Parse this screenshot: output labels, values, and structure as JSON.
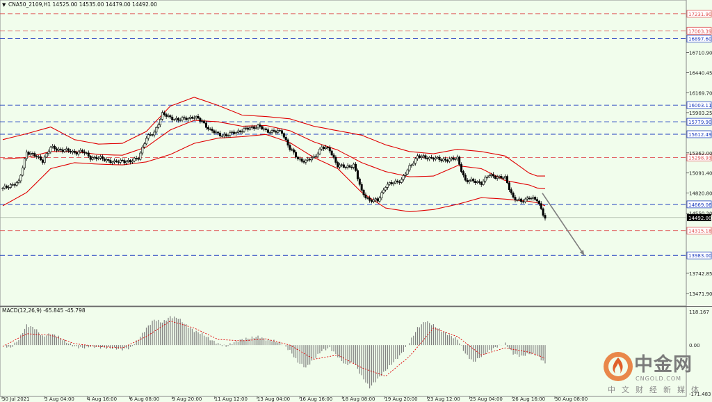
{
  "header": {
    "text": "CNA50_2109,H1  14525.00 14535.00 14479.00 14492.00",
    "macd_label": "MACD(12,26,9) -65.845 -45.798"
  },
  "colors": {
    "background": "#f1fdec",
    "bollinger": "#e00000",
    "candles": "#000000",
    "resistance_dash": "#e05050",
    "support_dash": "#2040c0",
    "arrow": "#808080",
    "macd_hist": "#808080",
    "macd_signal": "#e00000"
  },
  "watermark": {
    "icon": "cngold-flame-logo",
    "cn": "中金网",
    "en": "CNGOLD.COM",
    "sub": "中文财经新媒体"
  },
  "chart_data": [
    {
      "type": "candlestick",
      "title": "CNA50_2109,H1",
      "ohlc_last": {
        "open": 14525.0,
        "high": 14535.0,
        "low": 14479.0,
        "close": 14492.0
      },
      "y_ticks": [
        "16710.90",
        "16440.45",
        "16169.70",
        "15903.25",
        "15362.00",
        "15091.40",
        "14820.80",
        "14550.20",
        "13742.85",
        "13471.90"
      ],
      "ylim": [
        13340,
        17380
      ],
      "x_ticks": [
        "30 Jul 2021",
        "3 Aug 04:00",
        "4 Aug 16:00",
        "6 Aug 08:00",
        "9 Aug 20:00",
        "11 Aug 12:00",
        "13 Aug 04:00",
        "16 Aug 16:00",
        "18 Aug 08:00",
        "19 Aug 20:00",
        "23 Aug 12:00",
        "25 Aug 04:00",
        "26 Aug 16:00",
        "30 Aug 08:00"
      ],
      "current_price": "14492.00",
      "horizontal_levels": [
        {
          "value": "17231.90",
          "kind": "resistance"
        },
        {
          "value": "17003.39",
          "kind": "resistance"
        },
        {
          "value": "16897.60",
          "kind": "support"
        },
        {
          "value": "16003.11",
          "kind": "support"
        },
        {
          "value": "15779.90",
          "kind": "support"
        },
        {
          "value": "15612.49",
          "kind": "support"
        },
        {
          "value": "15298.93",
          "kind": "resistance"
        },
        {
          "value": "14669.06",
          "kind": "support"
        },
        {
          "value": "14315.18",
          "kind": "resistance"
        },
        {
          "value": "13983.00",
          "kind": "support"
        }
      ],
      "close_path": [
        [
          0,
          14880
        ],
        [
          1,
          14930
        ],
        [
          2,
          14960
        ],
        [
          3,
          15380
        ],
        [
          4,
          15320
        ],
        [
          5,
          15260
        ],
        [
          6,
          15430
        ],
        [
          7,
          15410
        ],
        [
          8,
          15390
        ],
        [
          9,
          15370
        ],
        [
          10,
          15380
        ],
        [
          11,
          15300
        ],
        [
          12,
          15290
        ],
        [
          13,
          15270
        ],
        [
          14,
          15230
        ],
        [
          15,
          15260
        ],
        [
          16,
          15240
        ],
        [
          17,
          15300
        ],
        [
          18,
          15560
        ],
        [
          19,
          15640
        ],
        [
          20,
          15880
        ],
        [
          21,
          15840
        ],
        [
          22,
          15800
        ],
        [
          23,
          15830
        ],
        [
          24,
          15840
        ],
        [
          25,
          15790
        ],
        [
          26,
          15660
        ],
        [
          27,
          15620
        ],
        [
          28,
          15590
        ],
        [
          29,
          15640
        ],
        [
          30,
          15660
        ],
        [
          31,
          15700
        ],
        [
          32,
          15720
        ],
        [
          33,
          15660
        ],
        [
          34,
          15650
        ],
        [
          35,
          15640
        ],
        [
          36,
          15420
        ],
        [
          37,
          15280
        ],
        [
          38,
          15250
        ],
        [
          39,
          15300
        ],
        [
          40,
          15440
        ],
        [
          41,
          15400
        ],
        [
          42,
          15190
        ],
        [
          43,
          15170
        ],
        [
          44,
          15200
        ],
        [
          45,
          14840
        ],
        [
          46,
          14720
        ],
        [
          47,
          14720
        ],
        [
          48,
          14920
        ],
        [
          49,
          14960
        ],
        [
          50,
          15000
        ],
        [
          51,
          15170
        ],
        [
          52,
          15320
        ],
        [
          53,
          15290
        ],
        [
          54,
          15300
        ],
        [
          55,
          15260
        ],
        [
          56,
          15280
        ],
        [
          57,
          15280
        ],
        [
          58,
          14990
        ],
        [
          59,
          14980
        ],
        [
          60,
          14960
        ],
        [
          61,
          15060
        ],
        [
          62,
          15040
        ],
        [
          63,
          15020
        ],
        [
          64,
          14760
        ],
        [
          65,
          14700
        ],
        [
          66,
          14770
        ],
        [
          67,
          14720
        ],
        [
          68,
          14492
        ]
      ],
      "bollinger_upper": [
        [
          0,
          15540
        ],
        [
          3,
          15620
        ],
        [
          6,
          15710
        ],
        [
          9,
          15540
        ],
        [
          12,
          15480
        ],
        [
          15,
          15490
        ],
        [
          18,
          15650
        ],
        [
          21,
          15990
        ],
        [
          24,
          16110
        ],
        [
          27,
          16000
        ],
        [
          30,
          15870
        ],
        [
          33,
          15850
        ],
        [
          36,
          15820
        ],
        [
          39,
          15720
        ],
        [
          42,
          15660
        ],
        [
          45,
          15600
        ],
        [
          48,
          15470
        ],
        [
          51,
          15380
        ],
        [
          54,
          15350
        ],
        [
          57,
          15410
        ],
        [
          60,
          15380
        ],
        [
          63,
          15320
        ],
        [
          66,
          15090
        ],
        [
          67,
          15050
        ],
        [
          68,
          15050
        ]
      ],
      "bollinger_middle": [
        [
          0,
          15280
        ],
        [
          3,
          15300
        ],
        [
          6,
          15380
        ],
        [
          9,
          15380
        ],
        [
          12,
          15340
        ],
        [
          15,
          15330
        ],
        [
          18,
          15440
        ],
        [
          21,
          15670
        ],
        [
          24,
          15800
        ],
        [
          27,
          15780
        ],
        [
          30,
          15720
        ],
        [
          33,
          15730
        ],
        [
          36,
          15660
        ],
        [
          39,
          15510
        ],
        [
          42,
          15400
        ],
        [
          45,
          15230
        ],
        [
          48,
          15110
        ],
        [
          51,
          15040
        ],
        [
          54,
          15050
        ],
        [
          57,
          15190
        ],
        [
          60,
          15150
        ],
        [
          63,
          14990
        ],
        [
          66,
          14930
        ],
        [
          67,
          14890
        ],
        [
          68,
          14880
        ]
      ],
      "bollinger_lower": [
        [
          0,
          14650
        ],
        [
          3,
          14830
        ],
        [
          6,
          15150
        ],
        [
          9,
          15230
        ],
        [
          12,
          15210
        ],
        [
          15,
          15200
        ],
        [
          18,
          15240
        ],
        [
          21,
          15340
        ],
        [
          24,
          15490
        ],
        [
          27,
          15560
        ],
        [
          30,
          15580
        ],
        [
          33,
          15610
        ],
        [
          36,
          15500
        ],
        [
          39,
          15300
        ],
        [
          42,
          15150
        ],
        [
          45,
          14830
        ],
        [
          48,
          14620
        ],
        [
          51,
          14570
        ],
        [
          54,
          14600
        ],
        [
          57,
          14670
        ],
        [
          60,
          14760
        ],
        [
          63,
          14740
        ],
        [
          66,
          14710
        ],
        [
          67,
          14690
        ],
        [
          68,
          14650
        ]
      ],
      "projection_arrow": {
        "from": [
          68,
          14820
        ],
        "to": [
          71,
          13983
        ]
      }
    },
    {
      "type": "bar",
      "title": "MACD(12,26,9)",
      "values_label": "-65.845 -45.798",
      "y_ticks": [
        "118.167",
        "0.00",
        "-171.483"
      ],
      "ylim": [
        -171.483,
        118.167
      ],
      "histogram": [
        [
          0,
          0
        ],
        [
          1,
          -10
        ],
        [
          2,
          20
        ],
        [
          3,
          70
        ],
        [
          4,
          60
        ],
        [
          5,
          30
        ],
        [
          6,
          40
        ],
        [
          7,
          30
        ],
        [
          8,
          10
        ],
        [
          9,
          -5
        ],
        [
          10,
          -10
        ],
        [
          11,
          -5
        ],
        [
          12,
          -8
        ],
        [
          13,
          -10
        ],
        [
          14,
          -12
        ],
        [
          15,
          -15
        ],
        [
          16,
          -10
        ],
        [
          17,
          20
        ],
        [
          18,
          60
        ],
        [
          19,
          90
        ],
        [
          20,
          80
        ],
        [
          21,
          100
        ],
        [
          22,
          95
        ],
        [
          23,
          70
        ],
        [
          24,
          50
        ],
        [
          25,
          40
        ],
        [
          26,
          20
        ],
        [
          27,
          5
        ],
        [
          28,
          -5
        ],
        [
          29,
          10
        ],
        [
          30,
          20
        ],
        [
          31,
          25
        ],
        [
          32,
          30
        ],
        [
          33,
          20
        ],
        [
          34,
          15
        ],
        [
          35,
          5
        ],
        [
          36,
          -20
        ],
        [
          37,
          -60
        ],
        [
          38,
          -80
        ],
        [
          39,
          -50
        ],
        [
          40,
          -20
        ],
        [
          41,
          -10
        ],
        [
          42,
          -40
        ],
        [
          43,
          -70
        ],
        [
          44,
          -60
        ],
        [
          45,
          -110
        ],
        [
          46,
          -150
        ],
        [
          47,
          -120
        ],
        [
          48,
          -90
        ],
        [
          49,
          -60
        ],
        [
          50,
          -30
        ],
        [
          51,
          10
        ],
        [
          52,
          60
        ],
        [
          53,
          85
        ],
        [
          54,
          70
        ],
        [
          55,
          50
        ],
        [
          56,
          35
        ],
        [
          57,
          20
        ],
        [
          58,
          -30
        ],
        [
          59,
          -60
        ],
        [
          60,
          -40
        ],
        [
          61,
          -20
        ],
        [
          62,
          -5
        ],
        [
          63,
          5
        ],
        [
          64,
          -30
        ],
        [
          65,
          -40
        ],
        [
          66,
          -30
        ],
        [
          67,
          -35
        ],
        [
          68,
          -65
        ]
      ],
      "signal": [
        [
          0,
          -5
        ],
        [
          3,
          40
        ],
        [
          6,
          35
        ],
        [
          9,
          5
        ],
        [
          12,
          -5
        ],
        [
          15,
          -10
        ],
        [
          18,
          30
        ],
        [
          21,
          85
        ],
        [
          24,
          60
        ],
        [
          27,
          20
        ],
        [
          30,
          15
        ],
        [
          33,
          22
        ],
        [
          36,
          0
        ],
        [
          39,
          -50
        ],
        [
          42,
          -35
        ],
        [
          45,
          -80
        ],
        [
          48,
          -110
        ],
        [
          51,
          -40
        ],
        [
          54,
          60
        ],
        [
          57,
          30
        ],
        [
          60,
          -35
        ],
        [
          63,
          -10
        ],
        [
          66,
          -25
        ],
        [
          68,
          -46
        ]
      ]
    }
  ]
}
